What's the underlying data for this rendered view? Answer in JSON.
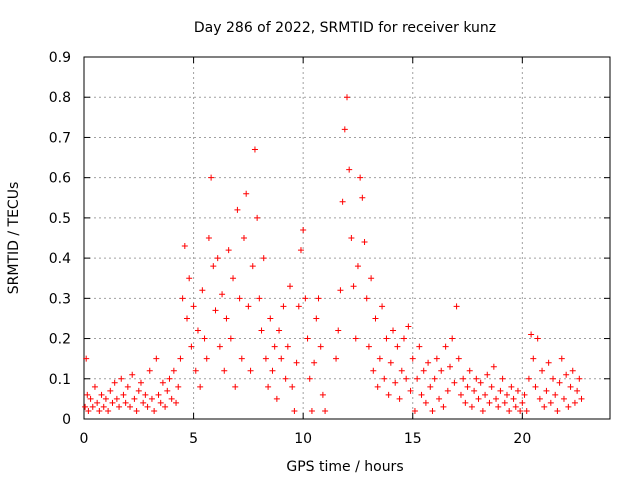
{
  "chart_data": {
    "type": "scatter",
    "title": "Day 286 of 2022, SRMTID for receiver kunz",
    "xlabel": "GPS time / hours",
    "ylabel": "SRMTID / TECUs",
    "xlim": [
      0,
      24
    ],
    "ylim": [
      0,
      0.9
    ],
    "x_ticks": [
      0,
      5,
      10,
      15,
      20
    ],
    "y_ticks": [
      0,
      0.1,
      0.2,
      0.3,
      0.4,
      0.5,
      0.6,
      0.7,
      0.8,
      0.9
    ],
    "x_tick_labels": [
      "0",
      "5",
      "10",
      "15",
      "20"
    ],
    "y_tick_labels": [
      "0",
      "0.1",
      "0.2",
      "0.3",
      "0.4",
      "0.5",
      "0.6",
      "0.7",
      "0.8",
      "0.9"
    ],
    "grid": true,
    "marker": "+",
    "marker_color": "#ff0000",
    "series": [
      {
        "name": "SRMTID",
        "points": [
          [
            0.05,
            0.03
          ],
          [
            0.1,
            0.15
          ],
          [
            0.15,
            0.06
          ],
          [
            0.2,
            0.02
          ],
          [
            0.3,
            0.05
          ],
          [
            0.4,
            0.03
          ],
          [
            0.5,
            0.08
          ],
          [
            0.6,
            0.04
          ],
          [
            0.7,
            0.02
          ],
          [
            0.8,
            0.06
          ],
          [
            0.9,
            0.03
          ],
          [
            1.0,
            0.05
          ],
          [
            1.1,
            0.02
          ],
          [
            1.2,
            0.07
          ],
          [
            1.3,
            0.04
          ],
          [
            1.4,
            0.09
          ],
          [
            1.5,
            0.05
          ],
          [
            1.6,
            0.03
          ],
          [
            1.7,
            0.1
          ],
          [
            1.8,
            0.06
          ],
          [
            1.9,
            0.04
          ],
          [
            2.0,
            0.08
          ],
          [
            2.1,
            0.03
          ],
          [
            2.2,
            0.11
          ],
          [
            2.3,
            0.05
          ],
          [
            2.4,
            0.02
          ],
          [
            2.5,
            0.07
          ],
          [
            2.6,
            0.09
          ],
          [
            2.7,
            0.04
          ],
          [
            2.8,
            0.06
          ],
          [
            2.9,
            0.03
          ],
          [
            3.0,
            0.12
          ],
          [
            3.1,
            0.05
          ],
          [
            3.2,
            0.02
          ],
          [
            3.3,
            0.15
          ],
          [
            3.4,
            0.06
          ],
          [
            3.5,
            0.04
          ],
          [
            3.6,
            0.09
          ],
          [
            3.7,
            0.03
          ],
          [
            3.8,
            0.07
          ],
          [
            3.9,
            0.1
          ],
          [
            4.0,
            0.05
          ],
          [
            4.1,
            0.12
          ],
          [
            4.2,
            0.04
          ],
          [
            4.3,
            0.08
          ],
          [
            4.4,
            0.15
          ],
          [
            4.5,
            0.3
          ],
          [
            4.6,
            0.43
          ],
          [
            4.7,
            0.25
          ],
          [
            4.8,
            0.35
          ],
          [
            4.9,
            0.18
          ],
          [
            5.0,
            0.28
          ],
          [
            5.1,
            0.12
          ],
          [
            5.2,
            0.22
          ],
          [
            5.3,
            0.08
          ],
          [
            5.4,
            0.32
          ],
          [
            5.5,
            0.2
          ],
          [
            5.6,
            0.15
          ],
          [
            5.7,
            0.45
          ],
          [
            5.8,
            0.6
          ],
          [
            5.9,
            0.38
          ],
          [
            6.0,
            0.27
          ],
          [
            6.1,
            0.4
          ],
          [
            6.2,
            0.18
          ],
          [
            6.3,
            0.31
          ],
          [
            6.4,
            0.12
          ],
          [
            6.5,
            0.25
          ],
          [
            6.6,
            0.42
          ],
          [
            6.7,
            0.2
          ],
          [
            6.8,
            0.35
          ],
          [
            6.9,
            0.08
          ],
          [
            7.0,
            0.52
          ],
          [
            7.1,
            0.3
          ],
          [
            7.2,
            0.15
          ],
          [
            7.3,
            0.45
          ],
          [
            7.4,
            0.56
          ],
          [
            7.5,
            0.28
          ],
          [
            7.6,
            0.12
          ],
          [
            7.7,
            0.38
          ],
          [
            7.8,
            0.67
          ],
          [
            7.9,
            0.5
          ],
          [
            8.0,
            0.3
          ],
          [
            8.1,
            0.22
          ],
          [
            8.2,
            0.4
          ],
          [
            8.3,
            0.15
          ],
          [
            8.4,
            0.08
          ],
          [
            8.5,
            0.25
          ],
          [
            8.6,
            0.12
          ],
          [
            8.7,
            0.18
          ],
          [
            8.8,
            0.05
          ],
          [
            8.9,
            0.22
          ],
          [
            9.0,
            0.15
          ],
          [
            9.1,
            0.28
          ],
          [
            9.2,
            0.1
          ],
          [
            9.3,
            0.18
          ],
          [
            9.4,
            0.33
          ],
          [
            9.5,
            0.08
          ],
          [
            9.6,
            0.02
          ],
          [
            9.7,
            0.14
          ],
          [
            9.8,
            0.28
          ],
          [
            9.9,
            0.42
          ],
          [
            10.0,
            0.47
          ],
          [
            10.1,
            0.3
          ],
          [
            10.2,
            0.2
          ],
          [
            10.3,
            0.1
          ],
          [
            10.4,
            0.02
          ],
          [
            10.5,
            0.14
          ],
          [
            10.6,
            0.25
          ],
          [
            10.7,
            0.3
          ],
          [
            10.8,
            0.18
          ],
          [
            10.9,
            0.06
          ],
          [
            11.0,
            0.02
          ],
          [
            11.5,
            0.15
          ],
          [
            11.6,
            0.22
          ],
          [
            11.7,
            0.32
          ],
          [
            11.8,
            0.54
          ],
          [
            11.9,
            0.72
          ],
          [
            12.0,
            0.8
          ],
          [
            12.1,
            0.62
          ],
          [
            12.2,
            0.45
          ],
          [
            12.3,
            0.33
          ],
          [
            12.4,
            0.2
          ],
          [
            12.5,
            0.38
          ],
          [
            12.6,
            0.6
          ],
          [
            12.7,
            0.55
          ],
          [
            12.8,
            0.44
          ],
          [
            12.9,
            0.3
          ],
          [
            13.0,
            0.18
          ],
          [
            13.1,
            0.35
          ],
          [
            13.2,
            0.12
          ],
          [
            13.3,
            0.25
          ],
          [
            13.4,
            0.08
          ],
          [
            13.5,
            0.15
          ],
          [
            13.6,
            0.28
          ],
          [
            13.7,
            0.1
          ],
          [
            13.8,
            0.2
          ],
          [
            13.9,
            0.06
          ],
          [
            14.0,
            0.14
          ],
          [
            14.1,
            0.22
          ],
          [
            14.2,
            0.09
          ],
          [
            14.3,
            0.18
          ],
          [
            14.4,
            0.05
          ],
          [
            14.5,
            0.12
          ],
          [
            14.6,
            0.2
          ],
          [
            14.7,
            0.1
          ],
          [
            14.8,
            0.23
          ],
          [
            14.9,
            0.07
          ],
          [
            15.0,
            0.15
          ],
          [
            15.1,
            0.02
          ],
          [
            15.2,
            0.1
          ],
          [
            15.3,
            0.18
          ],
          [
            15.4,
            0.06
          ],
          [
            15.5,
            0.12
          ],
          [
            15.6,
            0.04
          ],
          [
            15.7,
            0.14
          ],
          [
            15.8,
            0.08
          ],
          [
            15.9,
            0.02
          ],
          [
            16.0,
            0.1
          ],
          [
            16.1,
            0.15
          ],
          [
            16.2,
            0.05
          ],
          [
            16.3,
            0.12
          ],
          [
            16.4,
            0.03
          ],
          [
            16.5,
            0.18
          ],
          [
            16.6,
            0.07
          ],
          [
            16.7,
            0.13
          ],
          [
            16.8,
            0.2
          ],
          [
            16.9,
            0.09
          ],
          [
            17.0,
            0.28
          ],
          [
            17.1,
            0.15
          ],
          [
            17.2,
            0.06
          ],
          [
            17.3,
            0.1
          ],
          [
            17.4,
            0.04
          ],
          [
            17.5,
            0.08
          ],
          [
            17.6,
            0.12
          ],
          [
            17.7,
            0.03
          ],
          [
            17.8,
            0.07
          ],
          [
            17.9,
            0.1
          ],
          [
            18.0,
            0.05
          ],
          [
            18.1,
            0.09
          ],
          [
            18.2,
            0.02
          ],
          [
            18.3,
            0.06
          ],
          [
            18.4,
            0.11
          ],
          [
            18.5,
            0.04
          ],
          [
            18.6,
            0.08
          ],
          [
            18.7,
            0.13
          ],
          [
            18.8,
            0.05
          ],
          [
            18.9,
            0.03
          ],
          [
            19.0,
            0.07
          ],
          [
            19.1,
            0.1
          ],
          [
            19.2,
            0.04
          ],
          [
            19.3,
            0.06
          ],
          [
            19.4,
            0.02
          ],
          [
            19.5,
            0.08
          ],
          [
            19.6,
            0.05
          ],
          [
            19.7,
            0.03
          ],
          [
            19.8,
            0.07
          ],
          [
            19.9,
            0.02
          ],
          [
            20.0,
            0.04
          ],
          [
            20.1,
            0.06
          ],
          [
            20.2,
            0.02
          ],
          [
            20.3,
            0.1
          ],
          [
            20.4,
            0.21
          ],
          [
            20.5,
            0.15
          ],
          [
            20.6,
            0.08
          ],
          [
            20.7,
            0.2
          ],
          [
            20.8,
            0.05
          ],
          [
            20.9,
            0.12
          ],
          [
            21.0,
            0.03
          ],
          [
            21.1,
            0.07
          ],
          [
            21.2,
            0.14
          ],
          [
            21.3,
            0.04
          ],
          [
            21.4,
            0.1
          ],
          [
            21.5,
            0.06
          ],
          [
            21.6,
            0.02
          ],
          [
            21.7,
            0.09
          ],
          [
            21.8,
            0.15
          ],
          [
            21.9,
            0.05
          ],
          [
            22.0,
            0.11
          ],
          [
            22.1,
            0.03
          ],
          [
            22.2,
            0.08
          ],
          [
            22.3,
            0.12
          ],
          [
            22.4,
            0.04
          ],
          [
            22.5,
            0.07
          ],
          [
            22.6,
            0.1
          ],
          [
            22.7,
            0.05
          ]
        ]
      }
    ]
  }
}
